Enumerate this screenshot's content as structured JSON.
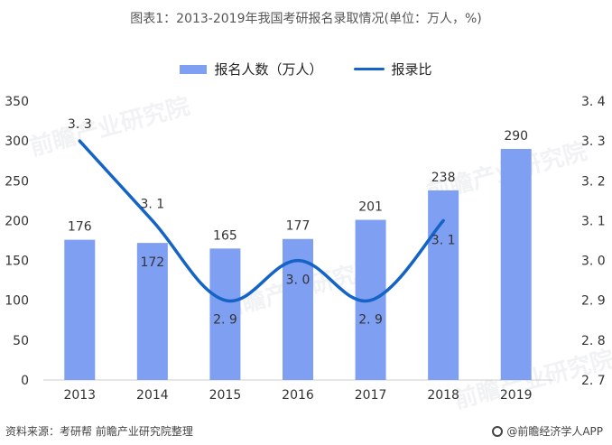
{
  "title": "图表1：2013-2019年我国考研报名录取情况(单位：万人，%)",
  "legend": {
    "bar_label": "报名人数（万人）",
    "line_label": "报录比"
  },
  "footer": {
    "source": "资料来源：考研帮 前瞻产业研究院整理",
    "brand": "@前瞻经济学人APP"
  },
  "watermark": "前瞻产业研究院",
  "colors": {
    "bar": "#7f9ff2",
    "line": "#1464c8",
    "axis": "#cccccc"
  },
  "chart_data": {
    "type": "bar",
    "categories": [
      "2013",
      "2014",
      "2015",
      "2016",
      "2017",
      "2018",
      "2019"
    ],
    "series": [
      {
        "name": "报名人数（万人）",
        "type": "bar",
        "axis": "left",
        "values": [
          176,
          172,
          165,
          177,
          201,
          238,
          290
        ],
        "labels": [
          "176",
          "172",
          "165",
          "177",
          "201",
          "238",
          "290"
        ]
      },
      {
        "name": "报录比",
        "type": "line",
        "axis": "right",
        "values": [
          3.3,
          3.1,
          2.9,
          3.0,
          2.9,
          3.1,
          null
        ],
        "labels": [
          "3. 3",
          "3. 1",
          "2. 9",
          "3. 0",
          "2. 9",
          "3. 1",
          ""
        ]
      }
    ],
    "y_left": {
      "range": [
        0,
        350
      ],
      "ticks": [
        "0",
        "50",
        "100",
        "150",
        "200",
        "250",
        "300",
        "350"
      ]
    },
    "y_right": {
      "range": [
        2.7,
        3.4
      ],
      "ticks": [
        "2. 7",
        "2. 8",
        "2. 9",
        "3. 0",
        "3. 1",
        "3. 2",
        "3. 3",
        "3. 4"
      ]
    },
    "legend_position": "top-center",
    "grid": false
  }
}
